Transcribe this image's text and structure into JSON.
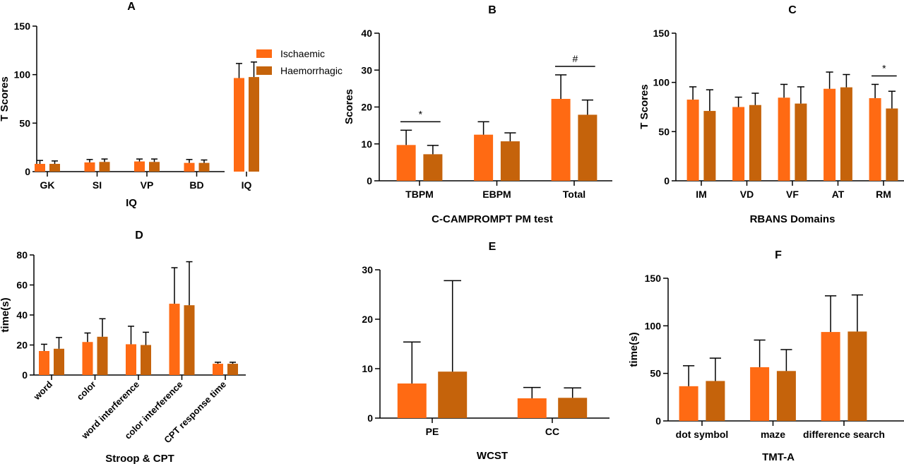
{
  "colors": {
    "ischaemic": "#FF6A13",
    "haemorrhagic": "#C5630B",
    "axis": "#000000"
  },
  "legend": [
    {
      "name": "Ischaemic",
      "color": "#FF6A13"
    },
    {
      "name": "Haemorrhagic",
      "color": "#C5630B"
    }
  ],
  "chart_data": [
    {
      "panel": "A",
      "type": "bar",
      "title": "A",
      "xlabel": "IQ",
      "ylabel": "T Scores",
      "ylim": [
        0,
        150
      ],
      "yticks": [
        0,
        50,
        100,
        150
      ],
      "categories": [
        "GK",
        "SI",
        "VP",
        "BD",
        "IQ"
      ],
      "series": [
        {
          "name": "Ischaemic",
          "values": [
            8,
            9.5,
            10.5,
            9,
            96.5
          ],
          "err": [
            3.5,
            3,
            2.5,
            3.5,
            15
          ]
        },
        {
          "name": "Haemorrhagic",
          "values": [
            8,
            10,
            10,
            9,
            97.5
          ],
          "err": [
            3,
            3,
            3,
            3,
            15.5
          ]
        }
      ]
    },
    {
      "panel": "B",
      "type": "bar",
      "title": "B",
      "xlabel": "C-CAMPROMPT PM test",
      "ylabel": "Scores",
      "ylim": [
        0,
        40
      ],
      "yticks": [
        0,
        10,
        20,
        30,
        40
      ],
      "categories": [
        "TBPM",
        "EBPM",
        "Total"
      ],
      "series": [
        {
          "name": "Ischaemic",
          "values": [
            9.7,
            12.5,
            22.2
          ],
          "err": [
            4,
            3.5,
            6.5
          ]
        },
        {
          "name": "Haemorrhagic",
          "values": [
            7.2,
            10.7,
            17.9
          ],
          "err": [
            2.4,
            2.3,
            4
          ]
        }
      ],
      "annotations": [
        {
          "category": "TBPM",
          "symbol": "*"
        },
        {
          "category": "Total",
          "symbol": "#"
        }
      ]
    },
    {
      "panel": "C",
      "type": "bar",
      "title": "C",
      "xlabel": "RBANS Domains",
      "ylabel": "T Scores",
      "ylim": [
        0,
        150
      ],
      "yticks": [
        0,
        50,
        100,
        150
      ],
      "categories": [
        "IM",
        "VD",
        "VF",
        "AT",
        "RM"
      ],
      "series": [
        {
          "name": "Ischaemic",
          "values": [
            82.5,
            75,
            84.5,
            93.5,
            84
          ],
          "err": [
            13,
            10,
            13.5,
            17,
            14
          ]
        },
        {
          "name": "Haemorrhagic",
          "values": [
            71,
            77,
            78.5,
            95,
            73.5
          ],
          "err": [
            21.5,
            12,
            17,
            13,
            17.5
          ]
        }
      ],
      "annotations": [
        {
          "category": "RM",
          "symbol": "*"
        }
      ]
    },
    {
      "panel": "D",
      "type": "bar",
      "title": "D",
      "xlabel": "Stroop & CPT",
      "ylabel": "time(s)",
      "ylim": [
        0,
        80
      ],
      "yticks": [
        0,
        20,
        40,
        60,
        80
      ],
      "categories": [
        "word",
        "color",
        "word interference",
        "color interference",
        "CPT response time"
      ],
      "series": [
        {
          "name": "Ischaemic",
          "values": [
            16,
            22,
            20.5,
            47.5,
            7.5
          ],
          "err": [
            4.5,
            6,
            12,
            24,
            1
          ]
        },
        {
          "name": "Haemorrhagic",
          "values": [
            17.5,
            25.5,
            20,
            46.5,
            7.5
          ],
          "err": [
            7.5,
            12,
            8.5,
            29,
            1
          ]
        }
      ]
    },
    {
      "panel": "E",
      "type": "bar",
      "title": "E",
      "xlabel": "WCST",
      "ylabel": "",
      "ylim": [
        0,
        30
      ],
      "yticks": [
        0,
        10,
        20,
        30
      ],
      "categories": [
        "PE",
        "CC"
      ],
      "series": [
        {
          "name": "Ischaemic",
          "values": [
            7,
            4
          ],
          "err": [
            8.4,
            2.2
          ]
        },
        {
          "name": "Haemorrhagic",
          "values": [
            9.4,
            4.1
          ],
          "err": [
            18.4,
            2
          ]
        }
      ]
    },
    {
      "panel": "F",
      "type": "bar",
      "title": "F",
      "xlabel": "TMT-A",
      "ylabel": "time(s)",
      "ylim": [
        0,
        150
      ],
      "yticks": [
        0,
        50,
        100,
        150
      ],
      "categories": [
        "dot symbol",
        "maze",
        "difference search"
      ],
      "series": [
        {
          "name": "Ischaemic",
          "values": [
            36.5,
            56.5,
            93.5
          ],
          "err": [
            21.5,
            28.5,
            38
          ]
        },
        {
          "name": "Haemorrhagic",
          "values": [
            42,
            52.5,
            94
          ],
          "err": [
            24,
            22.5,
            38.5
          ]
        }
      ]
    }
  ]
}
